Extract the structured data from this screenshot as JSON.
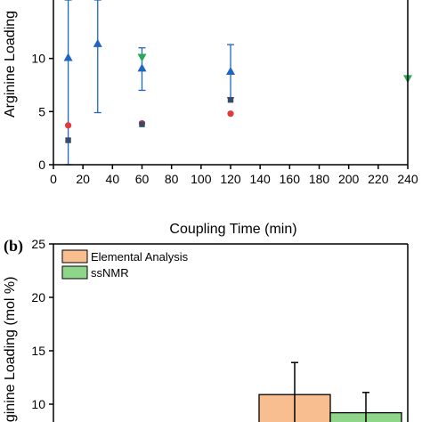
{
  "chart_data": [
    {
      "type": "scatter",
      "panel_label": "",
      "xlabel": "Coupling Time (min)",
      "ylabel": "Arginine Loading",
      "xlim": [
        0,
        240
      ],
      "ylim": [
        0,
        15
      ],
      "xticks": [
        "0",
        "20",
        "40",
        "60",
        "80",
        "100",
        "120",
        "140",
        "160",
        "180",
        "200",
        "220",
        "240"
      ],
      "yticks": [
        "0",
        "5",
        "10"
      ],
      "grid": false,
      "colors": {
        "blue": "#1f66c2",
        "green": "#2aa85a",
        "red": "#e0393e",
        "navy": "#3a4a6b"
      },
      "series": [
        {
          "marker": "triangle-up",
          "color": "#1f66c2",
          "points": [
            {
              "x": 10,
              "y": 10.1,
              "err_low": 0,
              "err_high": 15.5
            },
            {
              "x": 30,
              "y": 11.4,
              "err_low": 4.9,
              "err_high": 15.5
            },
            {
              "x": 60,
              "y": 9.1,
              "err_low": 7.0,
              "err_high": 11.0
            },
            {
              "x": 120,
              "y": 8.8,
              "err_low": 6.3,
              "err_high": 11.3
            }
          ]
        },
        {
          "marker": "triangle-down",
          "color": "#2aa85a",
          "points": [
            {
              "x": 60,
              "y": 10.1
            },
            {
              "x": 240,
              "y": 8.1
            }
          ]
        },
        {
          "marker": "circle",
          "color": "#e0393e",
          "points": [
            {
              "x": 10,
              "y": 3.7
            },
            {
              "x": 60,
              "y": 3.9
            },
            {
              "x": 120,
              "y": 4.8
            }
          ]
        },
        {
          "marker": "square",
          "color": "#3a4a6b",
          "points": [
            {
              "x": 10,
              "y": 2.3
            },
            {
              "x": 60,
              "y": 3.8
            },
            {
              "x": 120,
              "y": 6.1
            }
          ]
        }
      ]
    },
    {
      "type": "bar",
      "panel_label": "(b)",
      "ylabel": "rginine Loading (mol %)",
      "ylim": [
        0,
        25
      ],
      "yticks": [
        "25",
        "20",
        "15",
        "10"
      ],
      "legend": {
        "placement": "top-left",
        "entries": [
          "Elemental Analysis",
          "ssNMR"
        ]
      },
      "series": [
        {
          "name": "Elemental Analysis",
          "color": "#f9be90",
          "values": [
            10.9
          ],
          "err_high": [
            13.9
          ]
        },
        {
          "name": "ssNMR",
          "color": "#8fd68a",
          "values": [
            9.2
          ],
          "err_high": [
            11.1
          ]
        }
      ]
    }
  ]
}
